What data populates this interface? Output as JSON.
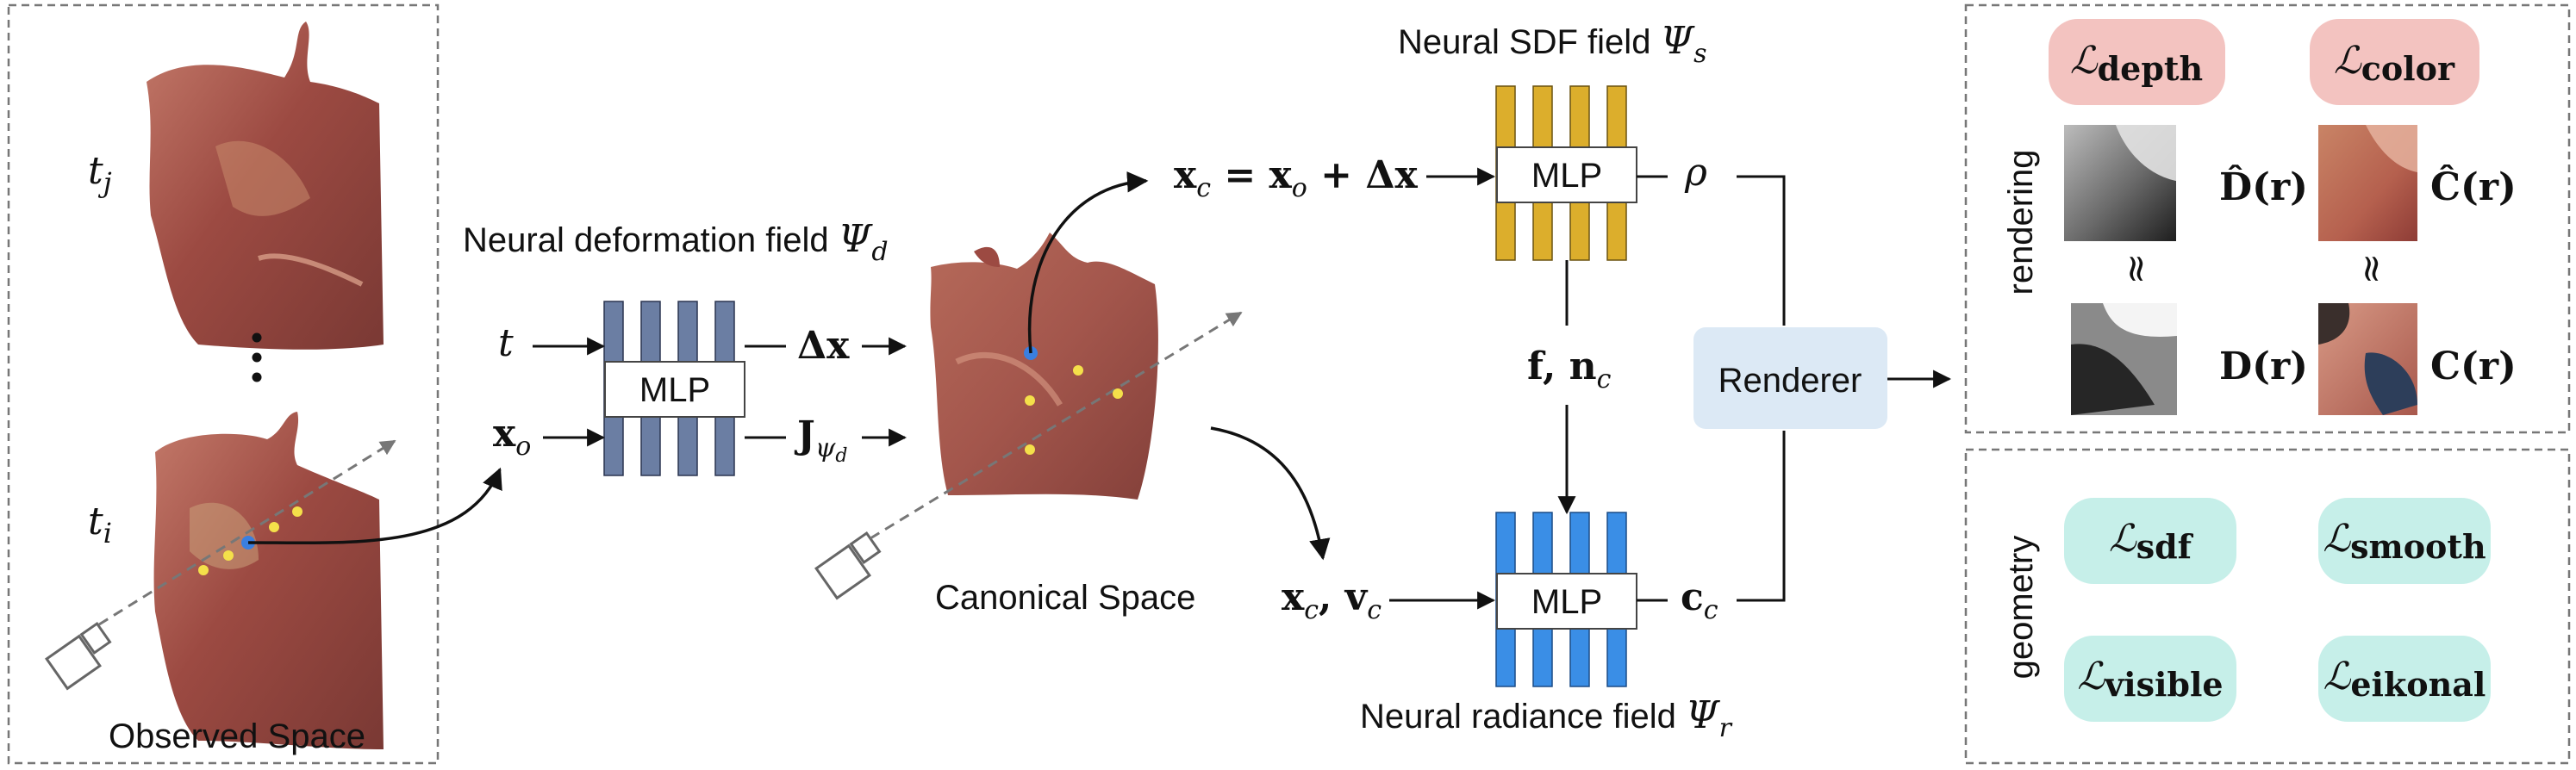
{
  "panels": {
    "observed_space_label": "Observed Space",
    "canonical_space_label": "Canonical Space",
    "rendering_label": "rendering",
    "geometry_label": "geometry"
  },
  "time": {
    "tj": "t",
    "tj_sub": "j",
    "ti": "t",
    "ti_sub": "i",
    "dots": "⋮"
  },
  "deformation": {
    "title_text": "Neural deformation field ",
    "title_psi": "Ψ",
    "title_sub": "d",
    "mlp_label": "MLP",
    "input_t": "t",
    "input_x": "x",
    "input_x_sub": "o",
    "output_dx": "Δx",
    "output_j": "J",
    "output_j_sub": "ψ",
    "output_j_subsub": "d"
  },
  "sdf": {
    "title_text": "Neural SDF field ",
    "title_psi": "Ψ",
    "title_sub": "s",
    "mlp_label": "MLP",
    "input_eq": "x",
    "input_eq_sub": "c",
    "input_eq_rest": " = x",
    "input_eq_sub2": "o",
    "input_eq_end": " + Δx",
    "output_rho": "ρ",
    "feature_f": "f, n",
    "feature_sub": "c"
  },
  "radiance": {
    "title_text": "Neural radiance field ",
    "title_psi": "Ψ",
    "title_sub": "r",
    "mlp_label": "MLP",
    "input_x": "x",
    "input_x_sub": "c",
    "input_v": ", v",
    "input_v_sub": "c",
    "output_c": "c",
    "output_c_sub": "c"
  },
  "renderer": {
    "label": "Renderer"
  },
  "losses": {
    "symbol": "ℒ",
    "depth": "depth",
    "color": "color",
    "sdf": "sdf",
    "smooth": "smooth",
    "visible": "visible",
    "eikonal": "eikonal"
  },
  "render_outputs": {
    "depth_hat": "D̂(r)",
    "color_hat": "Ĉ(r)",
    "depth_gt": "D(r)",
    "color_gt": "C(r)",
    "approx": "≈"
  },
  "colors": {
    "deform_mlp": "#6b7ea3",
    "sdf_mlp": "#dcae2c",
    "radiance_mlp": "#3a8ee6",
    "renderer_bg": "#dce9f5",
    "loss_render_bg": "#f3c3c0",
    "loss_geom_bg": "#c6efe9",
    "tissue": "#a5574c",
    "point_blue": "#3a7fe0",
    "point_yellow": "#f4e04a"
  }
}
